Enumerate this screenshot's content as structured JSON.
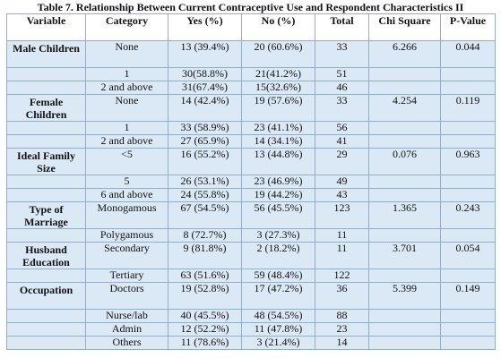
{
  "caption": "Table 7. Relationship Between Current Contraceptive Use and Respondent Characteristics II",
  "columns": [
    "Variable",
    "Category",
    "Yes (%)",
    "No (%)",
    "Total",
    "Chi Square",
    "P-Value"
  ],
  "rows": [
    {
      "variable": "Male Children",
      "category": "None",
      "yes": "13 (39.4%)",
      "no": "20 (60.6%)",
      "total": "33",
      "chi": "6.266",
      "p": "0.044"
    },
    {
      "variable": "",
      "category": "1",
      "yes": "30(58.8%)",
      "no": "21(41.2%)",
      "total": "51",
      "chi": "",
      "p": ""
    },
    {
      "variable": "",
      "category": "2 and above",
      "yes": "31(67.4%)",
      "no": "15(32.6%)",
      "total": "46",
      "chi": "",
      "p": ""
    },
    {
      "variable": "Female Children",
      "category": "None",
      "yes": "14 (42.4%)",
      "no": "19 (57.6%)",
      "total": "33",
      "chi": "4.254",
      "p": "0.119"
    },
    {
      "variable": "",
      "category": "1",
      "yes": "33 (58.9%)",
      "no": "23 (41.1%)",
      "total": "56",
      "chi": "",
      "p": ""
    },
    {
      "variable": "",
      "category": "2 and above",
      "yes": "27 (65.9%)",
      "no": "14 (34.1%)",
      "total": "41",
      "chi": "",
      "p": ""
    },
    {
      "variable": "Ideal Family Size",
      "category": "<5",
      "yes": "16 (55.2%)",
      "no": "13 (44.8%)",
      "total": "29",
      "chi": "0.076",
      "p": "0.963"
    },
    {
      "variable": "",
      "category": "5",
      "yes": "26 (53.1%)",
      "no": "23 (46.9%)",
      "total": "49",
      "chi": "",
      "p": ""
    },
    {
      "variable": "",
      "category": "6 and above",
      "yes": "24 (55.8%)",
      "no": "19 (44.2%)",
      "total": "43",
      "chi": "",
      "p": ""
    },
    {
      "variable": "Type of Marriage",
      "category": "Monogamous",
      "yes": "67 (54.5%)",
      "no": "56 (45.5%)",
      "total": "123",
      "chi": "1.365",
      "p": "0.243"
    },
    {
      "variable": "",
      "category": "Polygamous",
      "yes": "8 (72.7%)",
      "no": "3 (27.3%)",
      "total": "11",
      "chi": "",
      "p": ""
    },
    {
      "variable": "Husband Education",
      "category": "Secondary",
      "yes": "9 (81.8%)",
      "no": "2 (18.2%)",
      "total": "11",
      "chi": "3.701",
      "p": "0.054"
    },
    {
      "variable": "",
      "category": "Tertiary",
      "yes": "63 (51.6%)",
      "no": "59 (48.4%)",
      "total": "122",
      "chi": "",
      "p": ""
    },
    {
      "variable": "Occupation",
      "category": "Doctors",
      "yes": "19 (52.8%)",
      "no": "17 (47.2%)",
      "total": "36",
      "chi": "5.399",
      "p": "0.149"
    },
    {
      "variable": "",
      "category": "Nurse/lab",
      "yes": "40 (45.5%)",
      "no": "48 (54.5%)",
      "total": "88",
      "chi": "",
      "p": ""
    },
    {
      "variable": "",
      "category": "Admin",
      "yes": "12 (52.2%)",
      "no": "11 (47.8%)",
      "total": "23",
      "chi": "",
      "p": ""
    },
    {
      "variable": "",
      "category": "Others",
      "yes": "11 (78.6%)",
      "no": "3 (21.4%)",
      "total": "14",
      "chi": "",
      "p": ""
    }
  ]
}
